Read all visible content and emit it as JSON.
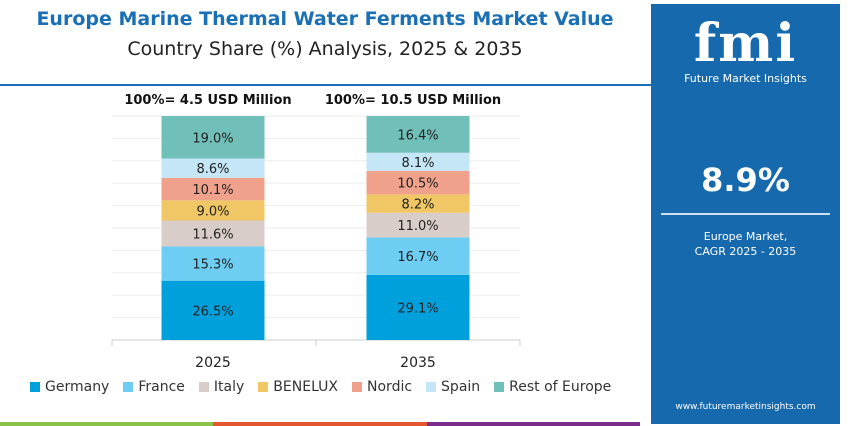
{
  "header": {
    "title": "Europe Marine Thermal Water Ferments Market Value",
    "subtitle": "Country Share (%) Analysis, 2025 & 2035"
  },
  "chart_data": {
    "type": "bar",
    "stacked": true,
    "categories": [
      "2025",
      "2035"
    ],
    "totals": [
      "100%= 4.5 USD Million",
      "100%= 10.5 USD Million"
    ],
    "series": [
      {
        "name": "Germany",
        "color": "#00a0dc",
        "values": [
          26.5,
          29.1
        ],
        "labels": [
          "26.5%",
          "29.1%"
        ]
      },
      {
        "name": "France",
        "color": "#6dcdf2",
        "values": [
          15.3,
          16.7
        ],
        "labels": [
          "15.3%",
          "16.7%"
        ]
      },
      {
        "name": "Italy",
        "color": "#d9cdc9",
        "values": [
          11.6,
          11.0
        ],
        "labels": [
          "11.6%",
          "11.0%"
        ]
      },
      {
        "name": "BENELUX",
        "color": "#f0c764",
        "values": [
          9.0,
          8.2
        ],
        "labels": [
          "9.0%",
          "8.2%"
        ]
      },
      {
        "name": "Nordic",
        "color": "#f0a18b",
        "values": [
          10.1,
          10.5
        ],
        "labels": [
          "10.1%",
          "10.5%"
        ]
      },
      {
        "name": "Spain",
        "color": "#c5e6f6",
        "values": [
          8.6,
          8.1
        ],
        "labels": [
          "8.6%",
          "8.1%"
        ]
      },
      {
        "name": "Rest of Europe",
        "color": "#70bfb9",
        "values": [
          19.0,
          16.4
        ],
        "labels": [
          "19.0%",
          "16.4%"
        ]
      }
    ],
    "ylim": [
      0,
      100
    ],
    "grid": true,
    "legend": "bottom"
  },
  "panel": {
    "logo": "fmi",
    "brand": "Future Market Insights",
    "cagr": "8.9%",
    "desc_line1": "Europe Market,",
    "desc_line2": "CAGR 2025 - 2035",
    "url": "www.futuremarketinsights.com"
  },
  "strip_colors": [
    "#8bc34a",
    "#e4572e",
    "#7b2d8e"
  ]
}
